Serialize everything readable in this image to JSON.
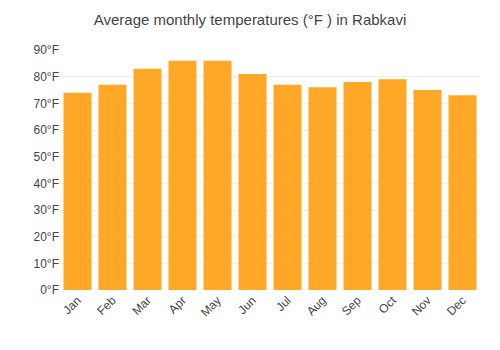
{
  "chart_data": {
    "type": "bar",
    "title": "Average monthly temperatures (°F ) in Rabkavi",
    "categories": [
      "Jan",
      "Feb",
      "Mar",
      "Apr",
      "May",
      "Jun",
      "Jul",
      "Aug",
      "Sep",
      "Oct",
      "Nov",
      "Dec"
    ],
    "values": [
      74,
      77,
      83,
      86,
      86,
      81,
      77,
      76,
      78,
      79,
      75,
      73
    ],
    "color": "#FFA726",
    "ylim": [
      0,
      90
    ],
    "yticks": [
      {
        "value": 0,
        "label": "0°F"
      },
      {
        "value": 10,
        "label": "10°F"
      },
      {
        "value": 20,
        "label": "20°F"
      },
      {
        "value": 30,
        "label": "30°F"
      },
      {
        "value": 40,
        "label": "40°F"
      },
      {
        "value": 50,
        "label": "50°F"
      },
      {
        "value": 60,
        "label": "60°F"
      },
      {
        "value": 70,
        "label": "70°F"
      },
      {
        "value": 80,
        "label": "80°F"
      },
      {
        "value": 90,
        "label": "90°F"
      }
    ],
    "grid": true
  }
}
